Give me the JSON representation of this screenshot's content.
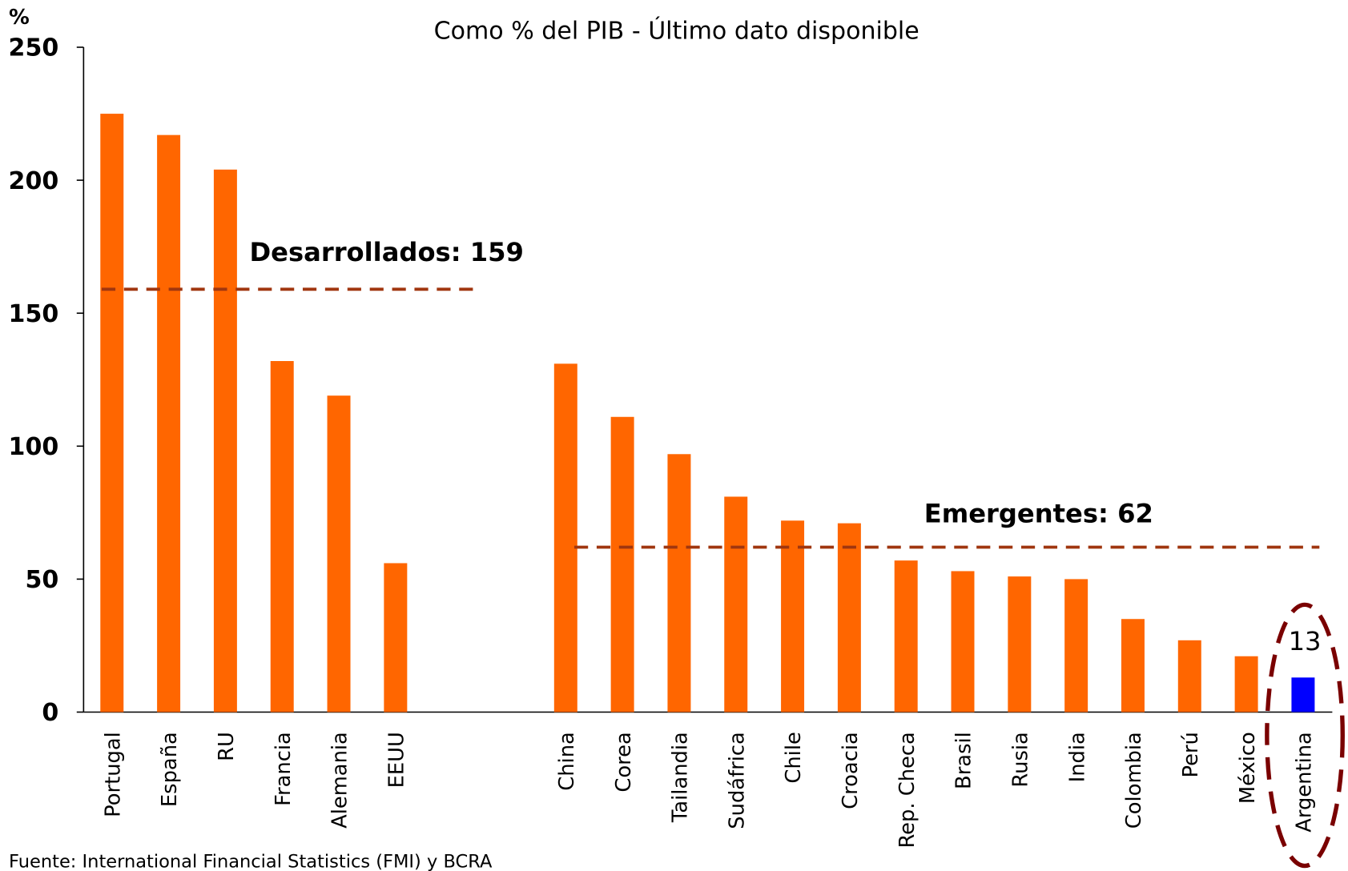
{
  "chart_data": {
    "type": "bar",
    "title": "Como % del PIB - Último dato disponible",
    "y_label": "%",
    "source": "Fuente: International Financial Statistics (FMI) y BCRA",
    "categories": [
      "Portugal",
      "España",
      "RU",
      "Francia",
      "Alemania",
      "EEUU",
      null,
      null,
      "China",
      "Corea",
      "Tailandia",
      "Sudáfrica",
      "Chile",
      "Croacia",
      "Rep. Checa",
      "Brasil",
      "Rusia",
      "India",
      "Colombia",
      "Perú",
      "México",
      "Argentina"
    ],
    "values": [
      225,
      217,
      204,
      132,
      119,
      56,
      null,
      null,
      131,
      111,
      97,
      81,
      72,
      71,
      57,
      53,
      51,
      50,
      35,
      27,
      21,
      13
    ],
    "colors": [
      "#ff6600",
      "#ff6600",
      "#ff6600",
      "#ff6600",
      "#ff6600",
      "#ff6600",
      null,
      null,
      "#ff6600",
      "#ff6600",
      "#ff6600",
      "#ff6600",
      "#ff6600",
      "#ff6600",
      "#ff6600",
      "#ff6600",
      "#ff6600",
      "#ff6600",
      "#ff6600",
      "#ff6600",
      "#ff6600",
      "#0000ff"
    ],
    "ylim": [
      0,
      250
    ],
    "yticks": [
      0,
      50,
      100,
      150,
      200,
      250
    ],
    "reference_lines": [
      {
        "label": "Desarrollados: 159",
        "value": 159,
        "color": "#a0360f"
      },
      {
        "label": "Emergentes: 62",
        "value": 62,
        "color": "#a0360f"
      }
    ]
  }
}
